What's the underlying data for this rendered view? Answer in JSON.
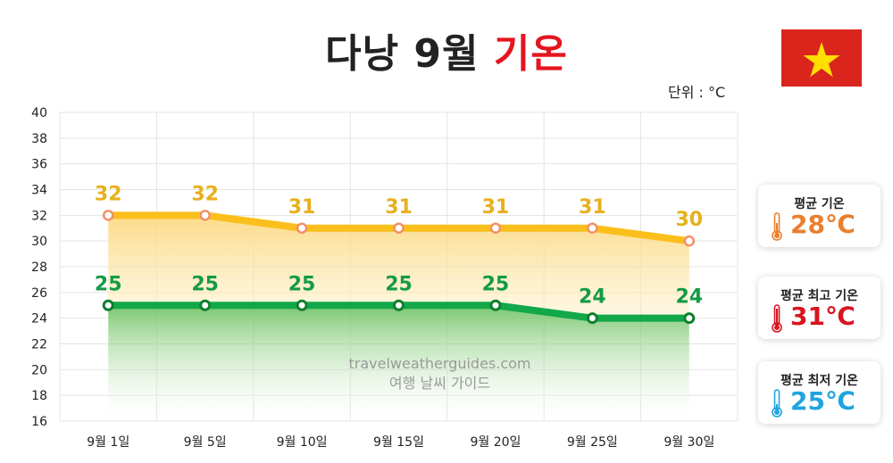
{
  "title": {
    "main": "다낭 9월 ",
    "accent": "기온"
  },
  "unit_label": "단위 : °C",
  "watermark": {
    "line1": "travelweatherguides.com",
    "line2": "여행 날씨 가이드"
  },
  "summary_cards": [
    {
      "label": "평균 기온",
      "value": "28℃",
      "color": "#ea7f2e",
      "icon": "thermometer-icon"
    },
    {
      "label": "평균 최고 기온",
      "value": "31℃",
      "color": "#d81520",
      "icon": "thermometer-icon"
    },
    {
      "label": "평균 최저 기온",
      "value": "25℃",
      "color": "#1fa4e0",
      "icon": "thermometer-icon"
    }
  ],
  "colors": {
    "high_line": "#fbbf1c",
    "low_line": "#12a84a",
    "high_label": "#e7b11d",
    "low_label": "#159a47",
    "accent": "#e5151f"
  },
  "chart_data": {
    "type": "line",
    "categories": [
      "9월 1일",
      "9월 5일",
      "9월 10일",
      "9월 15일",
      "9월 20일",
      "9월 25일",
      "9월 30일"
    ],
    "series": [
      {
        "name": "",
        "values": [
          32,
          32,
          31,
          31,
          31,
          31,
          30
        ]
      },
      {
        "name": "",
        "values": [
          25,
          25,
          25,
          25,
          25,
          24,
          24
        ]
      }
    ],
    "ylim": [
      16,
      40
    ],
    "yticks": [
      16,
      18,
      20,
      22,
      24,
      26,
      28,
      30,
      32,
      34,
      36,
      38,
      40
    ],
    "grid": true
  }
}
